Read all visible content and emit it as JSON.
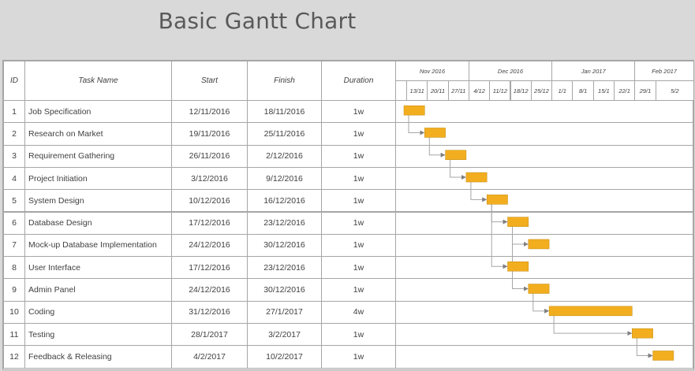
{
  "title": "Basic Gantt Chart",
  "columns": {
    "id": "ID",
    "task": "Task Name",
    "start": "Start",
    "finish": "Finish",
    "duration": "Duration"
  },
  "months": [
    "Nov 2016",
    "Dec 2016",
    "Jan 2017",
    "Feb 2017"
  ],
  "weeks": [
    "13/11",
    "20/11",
    "27/11",
    "4/12",
    "11/12",
    "18/12",
    "25/12",
    "1/1",
    "8/1",
    "15/1",
    "22/1",
    "29/1",
    "5/2"
  ],
  "chart_data": {
    "type": "gantt",
    "title": "Basic Gantt Chart",
    "bar_color": "#f2ae1f",
    "connector_color": "#a6a6a6",
    "tasks": [
      {
        "id": "1",
        "name": "Job Specification",
        "start": "12/11/2016",
        "finish": "18/11/2016",
        "duration": "1w",
        "start_week": 0,
        "weeks": 1,
        "pred": []
      },
      {
        "id": "2",
        "name": "Research on Market",
        "start": "19/11/2016",
        "finish": "25/11/2016",
        "duration": "1w",
        "start_week": 1,
        "weeks": 1,
        "pred": [
          0
        ]
      },
      {
        "id": "3",
        "name": "Requirement Gathering",
        "start": "26/11/2016",
        "finish": "2/12/2016",
        "duration": "1w",
        "start_week": 2,
        "weeks": 1,
        "pred": [
          1
        ]
      },
      {
        "id": "4",
        "name": "Project Initiation",
        "start": "3/12/2016",
        "finish": "9/12/2016",
        "duration": "1w",
        "start_week": 3,
        "weeks": 1,
        "pred": [
          2
        ]
      },
      {
        "id": "5",
        "name": "System Design",
        "start": "10/12/2016",
        "finish": "16/12/2016",
        "duration": "1w",
        "start_week": 4,
        "weeks": 1,
        "pred": [
          3
        ]
      },
      {
        "id": "6",
        "name": "Database Design",
        "start": "17/12/2016",
        "finish": "23/12/2016",
        "duration": "1w",
        "start_week": 5,
        "weeks": 1,
        "pred": [
          4
        ]
      },
      {
        "id": "7",
        "name": "Mock-up Database Implementation",
        "start": "24/12/2016",
        "finish": "30/12/2016",
        "duration": "1w",
        "start_week": 6,
        "weeks": 1,
        "pred": [
          5
        ]
      },
      {
        "id": "8",
        "name": "User Interface",
        "start": "17/12/2016",
        "finish": "23/12/2016",
        "duration": "1w",
        "start_week": 5,
        "weeks": 1,
        "pred": [
          4
        ]
      },
      {
        "id": "9",
        "name": "Admin Panel",
        "start": "24/12/2016",
        "finish": "30/12/2016",
        "duration": "1w",
        "start_week": 6,
        "weeks": 1,
        "pred": [
          5
        ]
      },
      {
        "id": "10",
        "name": "Coding",
        "start": "31/12/2016",
        "finish": "27/1/2017",
        "duration": "4w",
        "start_week": 7,
        "weeks": 4,
        "pred": [
          8
        ]
      },
      {
        "id": "11",
        "name": "Testing",
        "start": "28/1/2017",
        "finish": "3/2/2017",
        "duration": "1w",
        "start_week": 11,
        "weeks": 1,
        "pred": [
          9
        ]
      },
      {
        "id": "12",
        "name": "Feedback & Releasing",
        "start": "4/2/2017",
        "finish": "10/2/2017",
        "duration": "1w",
        "start_week": 12,
        "weeks": 1,
        "pred": [
          10
        ]
      }
    ]
  }
}
